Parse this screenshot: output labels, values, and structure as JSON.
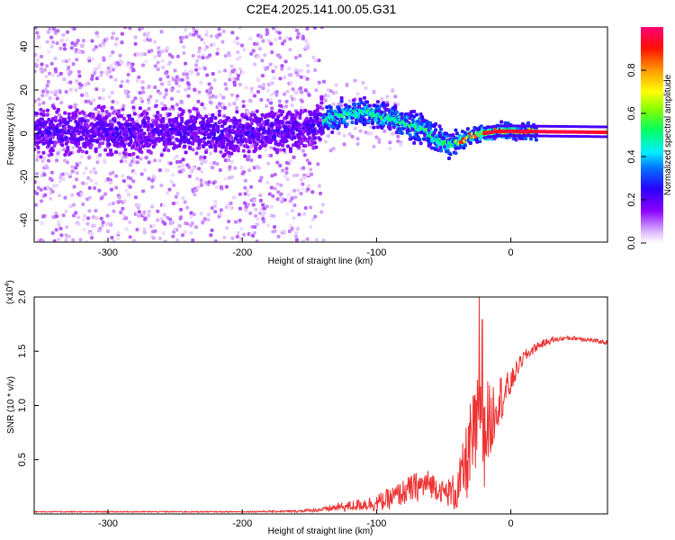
{
  "chart_data": [
    {
      "type": "heatmap",
      "title": "C2E4.2025.141.00.05.G31",
      "xlabel": "Height of straight line (km)",
      "ylabel": "Frequency (Hz)",
      "xlim": [
        -355,
        72
      ],
      "ylim": [
        -50,
        49
      ],
      "xticks": [
        -300,
        -200,
        -100,
        0
      ],
      "yticks": [
        -40,
        -20,
        0,
        20,
        40
      ],
      "colorbar": {
        "label": "Normalized spectral amplitude",
        "range": [
          0,
          1
        ],
        "ticks": [
          "0.0",
          "0.2",
          "0.4",
          "0.6",
          "0.8"
        ],
        "colors": [
          "#ffffff",
          "#cc99ff",
          "#7a00ff",
          "#0000ff",
          "#00ffff",
          "#00ff00",
          "#ffff00",
          "#ff0000",
          "#ff00c8"
        ]
      },
      "ridge": {
        "x": [
          -355,
          -300,
          -250,
          -200,
          -150,
          -130,
          -110,
          -95,
          -80,
          -65,
          -55,
          -45,
          -38,
          -30,
          -20,
          -10,
          0,
          72
        ],
        "freq": [
          1,
          1,
          1,
          0,
          3,
          8,
          10,
          8,
          5,
          2,
          -3,
          -5,
          -4,
          -1,
          0,
          1,
          1,
          0.5
        ]
      }
    },
    {
      "type": "line",
      "xlabel": "Height of straight line (km)",
      "ylabel": "SNR (10 * v/v)",
      "y_multiplier": "(x10",
      "y_multiplier_exp": "4",
      "xlim": [
        -355,
        72
      ],
      "ylim": [
        0,
        2.0
      ],
      "xticks": [
        -300,
        -200,
        -100,
        0
      ],
      "yticks": [
        "0.5",
        "1.0",
        "1.5",
        "2.0"
      ],
      "color": "#ee3333",
      "series": [
        {
          "x": [
            -355,
            -300,
            -250,
            -200,
            -160,
            -140,
            -130,
            -120,
            -110,
            -100,
            -90,
            -80,
            -70,
            -60,
            -50,
            -40,
            -35,
            -30,
            -25,
            -22,
            -20,
            -18,
            -15,
            -12,
            -10,
            -5,
            0,
            5,
            10,
            20,
            30,
            40,
            50,
            60,
            72
          ],
          "y": [
            0.02,
            0.02,
            0.02,
            0.02,
            0.025,
            0.04,
            0.06,
            0.07,
            0.09,
            0.1,
            0.14,
            0.2,
            0.25,
            0.28,
            0.2,
            0.2,
            0.4,
            0.6,
            0.8,
            0.9,
            0.6,
            0.9,
            0.8,
            1.0,
            1.05,
            1.1,
            1.2,
            1.35,
            1.45,
            1.55,
            1.6,
            1.62,
            1.62,
            1.6,
            1.58
          ],
          "noise": [
            0.005,
            0.005,
            0.005,
            0.005,
            0.01,
            0.02,
            0.04,
            0.05,
            0.06,
            0.08,
            0.1,
            0.12,
            0.14,
            0.13,
            0.1,
            0.2,
            0.3,
            0.45,
            0.45,
            0.5,
            0.4,
            0.4,
            0.35,
            0.3,
            0.25,
            0.2,
            0.12,
            0.08,
            0.06,
            0.04,
            0.03,
            0.02,
            0.02,
            0.02,
            0.02
          ]
        }
      ]
    }
  ]
}
